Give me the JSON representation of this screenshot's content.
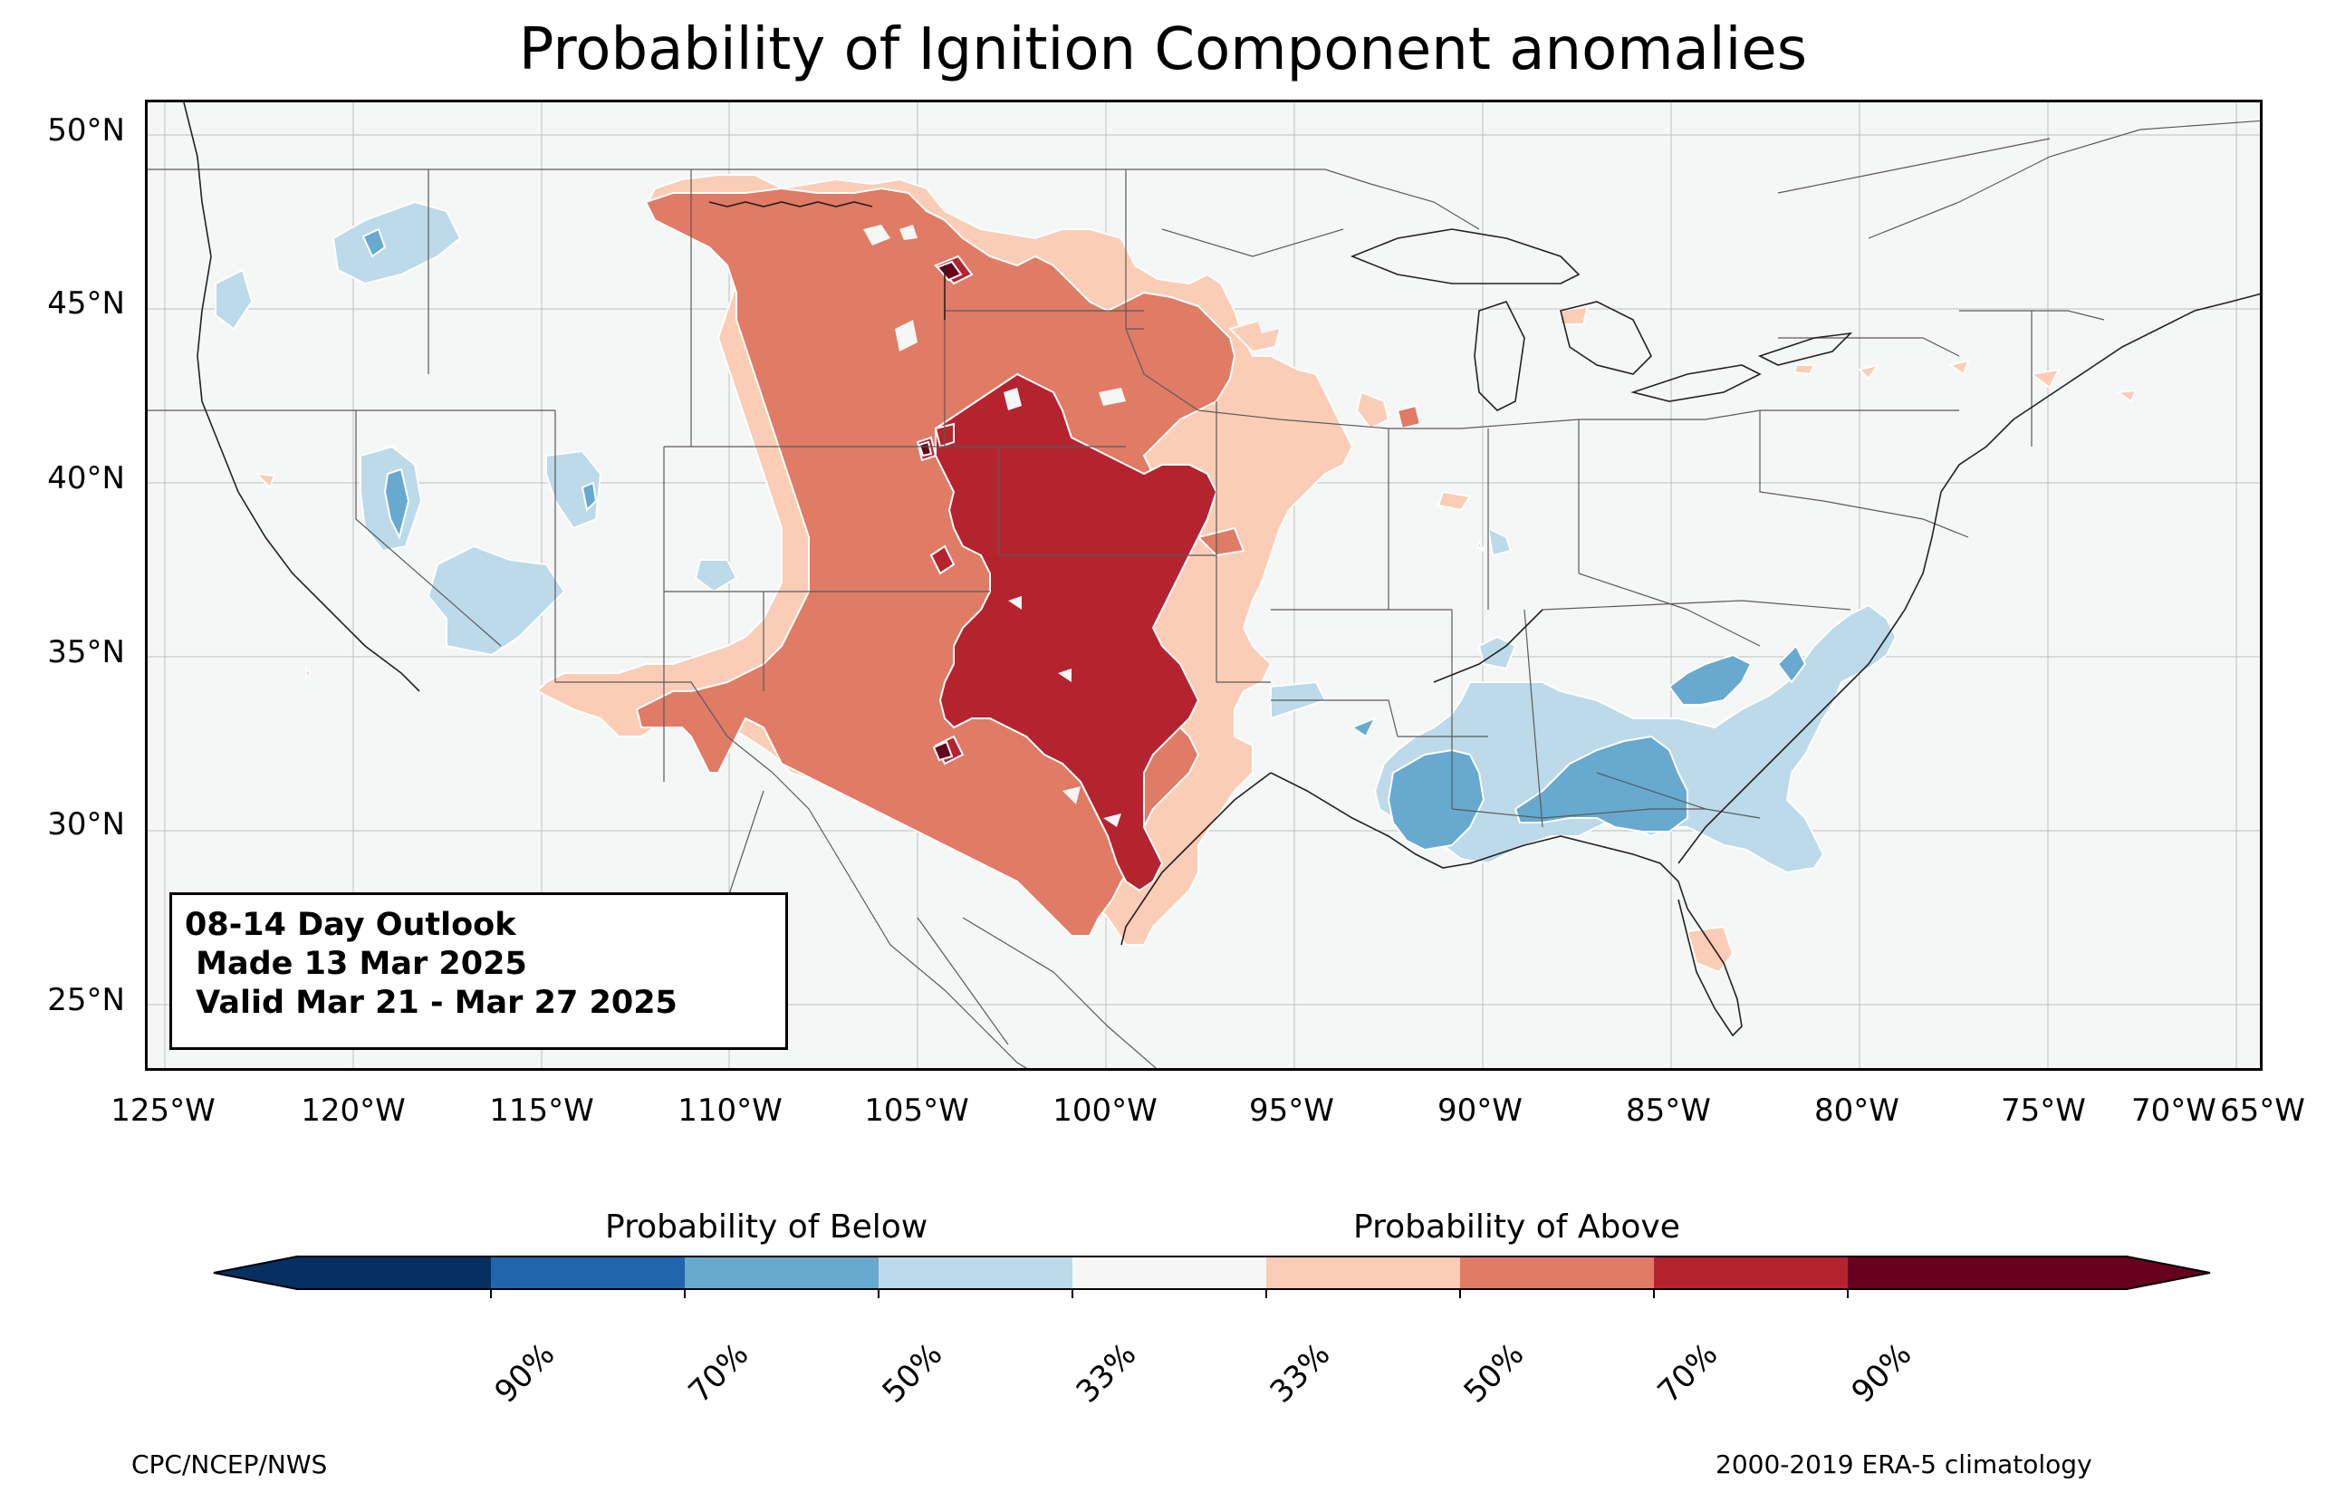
{
  "title": "Probability of Ignition Component anomalies",
  "outlook": {
    "line1": "08-14 Day Outlook",
    "line2": " Made 13 Mar 2025",
    "line3": " Valid Mar 21 - Mar 27 2025"
  },
  "lat_labels": [
    "50°N",
    "45°N",
    "40°N",
    "35°N",
    "30°N",
    "25°N"
  ],
  "lon_labels": [
    "125°W",
    "120°W",
    "115°W",
    "110°W",
    "105°W",
    "100°W",
    "95°W",
    "90°W",
    "85°W",
    "80°W",
    "75°W",
    "70°W",
    "65°W"
  ],
  "legend": {
    "below_label": "Probability of Below",
    "above_label": "Probability of Above",
    "tick_labels": [
      "90%",
      "70%",
      "50%",
      "33%",
      "33%",
      "50%",
      "70%",
      "90%"
    ],
    "colors": [
      "#053061",
      "#2166ac",
      "#67a9cf",
      "#bcdaea",
      "#f7f7f7",
      "#fbcdb6",
      "#e07b65",
      "#b5232f",
      "#67001f"
    ]
  },
  "footer": {
    "left": "CPC/NCEP/NWS",
    "right": "2000-2019 ERA-5 climatology"
  }
}
